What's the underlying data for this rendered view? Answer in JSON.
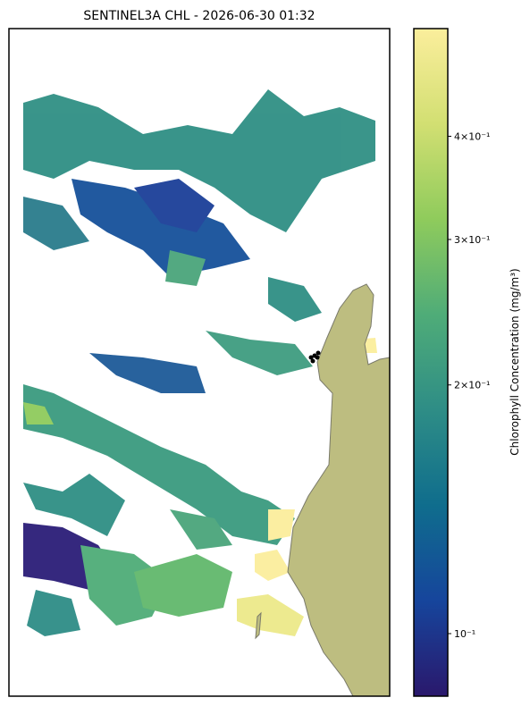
{
  "chart_data": {
    "type": "map",
    "title": "SENTINEL3A CHL - 2026-06-30 01:32",
    "colorbar": {
      "label": "Chlorophyll Concentration (mg/m³)",
      "log": true,
      "lim": [
        0.084,
        0.54
      ],
      "ticks": [
        {
          "value": 0.1,
          "label": "10⁻¹"
        },
        {
          "value": 0.2,
          "label": "2×10⁻¹"
        },
        {
          "value": 0.3,
          "label": "3×10⁻¹"
        },
        {
          "value": 0.4,
          "label": "4×10⁻¹"
        }
      ],
      "colors": [
        "#2a186c",
        "#16459c",
        "#0f6d8d",
        "#2e8d86",
        "#4fac78",
        "#8fcb5c",
        "#d2df72",
        "#fbee9c"
      ]
    }
  }
}
